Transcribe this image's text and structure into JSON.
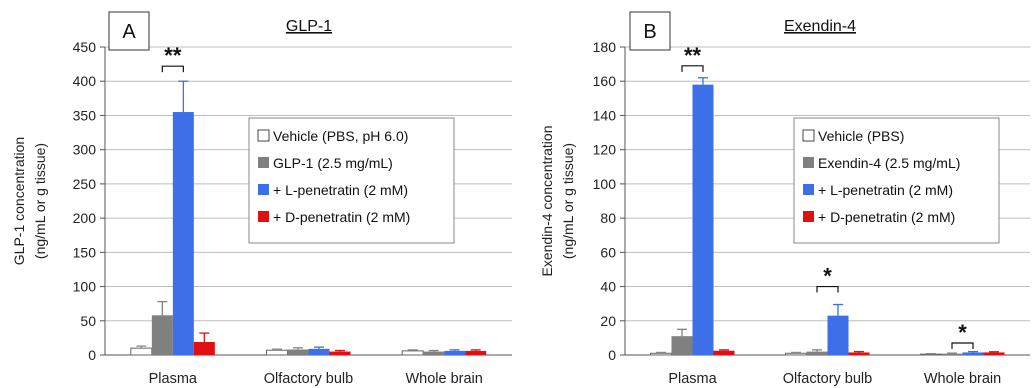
{
  "chart_data": [
    {
      "type": "bar",
      "panel_label": "A",
      "title": "GLP-1",
      "ylabel_line1": "GLP-1 concentration",
      "ylabel_line2": "(ng/mL or g tissue)",
      "ylim": [
        0,
        450
      ],
      "yticks": [
        0,
        50,
        100,
        150,
        200,
        250,
        300,
        350,
        400,
        450
      ],
      "grid": true,
      "legend_position": "right",
      "categories": [
        "Plasma",
        "Olfactory bulb",
        "Whole brain"
      ],
      "series": [
        {
          "name": "Vehicle (PBS, pH 6.0)",
          "color": "#ffffff",
          "values": [
            10,
            7,
            6
          ],
          "errors": [
            3,
            1.5,
            1.5
          ]
        },
        {
          "name": "GLP-1 (2.5 mg/mL)",
          "color": "#808080",
          "values": [
            58,
            8,
            5
          ],
          "errors": [
            20,
            2.5,
            1.5
          ]
        },
        {
          "name": "+ L-penetratin (2 mM)",
          "color": "#3d6fe8",
          "values": [
            355,
            9,
            6
          ],
          "errors": [
            45,
            2.5,
            1.5
          ]
        },
        {
          "name": "+ D-penetratin (2 mM)",
          "color": "#e01010",
          "values": [
            19,
            5,
            6
          ],
          "errors": [
            13,
            1.5,
            1.5
          ]
        }
      ],
      "significance": [
        {
          "category_index": 0,
          "from_series": 1,
          "to_series": 2,
          "label": "**",
          "level": 422
        }
      ]
    },
    {
      "type": "bar",
      "panel_label": "B",
      "title": "Exendin-4",
      "ylabel_line1": "Exendin-4 concentration",
      "ylabel_line2": "(ng/mL or g tissue)",
      "ylim": [
        0,
        180
      ],
      "yticks": [
        0,
        20,
        40,
        60,
        80,
        100,
        120,
        140,
        160,
        180
      ],
      "grid": true,
      "legend_position": "right",
      "categories": [
        "Plasma",
        "Olfactory bulb",
        "Whole brain"
      ],
      "series": [
        {
          "name": "Vehicle (PBS)",
          "color": "#ffffff",
          "values": [
            1,
            1,
            0.5
          ],
          "errors": [
            0.5,
            0.5,
            0.3
          ]
        },
        {
          "name": "Exendin-4 (2.5 mg/mL)",
          "color": "#808080",
          "values": [
            11,
            2,
            0.8
          ],
          "errors": [
            4,
            1,
            0.3
          ]
        },
        {
          "name": "+ L-penetratin (2 mM)",
          "color": "#3d6fe8",
          "values": [
            158,
            23,
            1.5
          ],
          "errors": [
            4,
            6.5,
            0.5
          ]
        },
        {
          "name": "+ D-penetratin (2 mM)",
          "color": "#e01010",
          "values": [
            2.5,
            1.5,
            1.5
          ],
          "errors": [
            0.5,
            0.5,
            0.4
          ]
        }
      ],
      "significance": [
        {
          "category_index": 0,
          "from_series": 1,
          "to_series": 2,
          "label": "**",
          "level": 169
        },
        {
          "category_index": 1,
          "from_series": 1,
          "to_series": 2,
          "label": "*",
          "level": 40
        },
        {
          "category_index": 2,
          "from_series": 1,
          "to_series": 2,
          "label": "*",
          "level": 7
        }
      ]
    }
  ]
}
